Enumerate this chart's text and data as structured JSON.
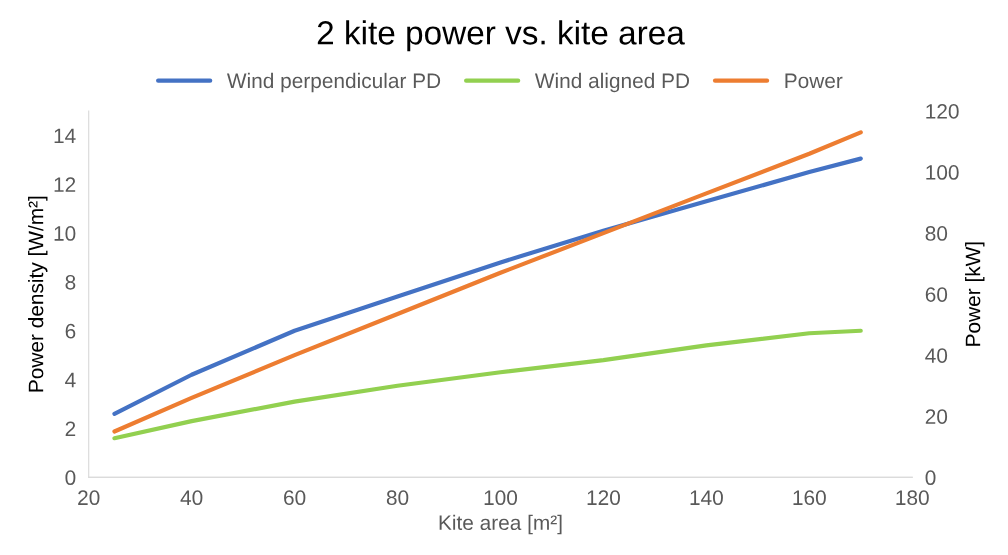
{
  "chart_data": {
    "type": "line",
    "title": "2 kite power vs. kite area",
    "xlabel": "Kite area [m²]",
    "ylabel": "Power density [W/m²]",
    "y2label": "Power [kW]",
    "xlim": [
      20,
      180
    ],
    "xticks": [
      20,
      40,
      60,
      80,
      100,
      120,
      140,
      160,
      180
    ],
    "ylim": [
      0,
      15
    ],
    "yticks": [
      0,
      2,
      4,
      6,
      8,
      10,
      12,
      14
    ],
    "y2lim": [
      0,
      120
    ],
    "y2ticks": [
      0,
      20,
      40,
      60,
      80,
      100,
      120
    ],
    "legend": "top",
    "grid": false,
    "marker": "none",
    "line_style": "solid",
    "series": [
      {
        "name": "Wind perpendicular PD",
        "color": "#4472c4",
        "x": [
          25,
          40,
          60,
          80,
          100,
          120,
          140,
          160,
          170
        ],
        "values": [
          2.6,
          4.2,
          6.0,
          7.4,
          8.8,
          10.1,
          11.3,
          12.5,
          13.05
        ]
      },
      {
        "name": "Wind aligned PD",
        "color": "#92d050",
        "x": [
          25,
          40,
          60,
          80,
          100,
          120,
          140,
          160,
          170
        ],
        "values": [
          1.6,
          2.3,
          3.1,
          3.75,
          4.3,
          4.8,
          5.4,
          5.9,
          6.0
        ]
      },
      {
        "name": "Power",
        "color": "#ed7d31",
        "axis": "y2",
        "x": [
          25,
          40,
          60,
          80,
          100,
          120,
          140,
          160,
          170
        ],
        "values": [
          15,
          26,
          40,
          53.5,
          67,
          80,
          93,
          106,
          113
        ]
      }
    ]
  }
}
